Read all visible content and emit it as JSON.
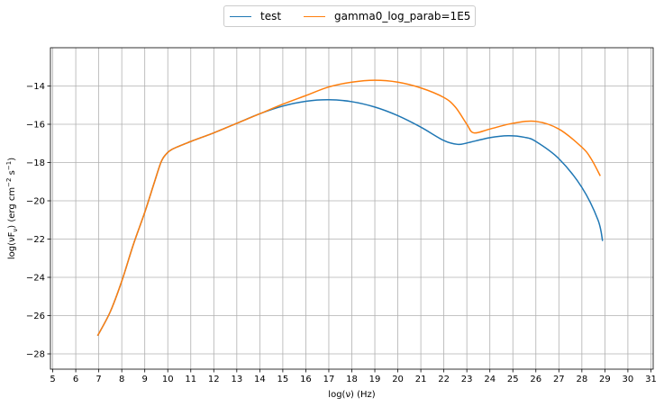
{
  "chart_data": {
    "type": "line",
    "xlabel": "log(ν)  (Hz)",
    "ylabel": "log(νF",
    "ylabel_sub": "ν",
    "ylabel_unit": "(erg cm",
    "ylabel_exp1": "−2",
    "ylabel_s": "s",
    "ylabel_exp2": "−1",
    "xlim": [
      4.9,
      31.1
    ],
    "ylim": [
      -28.8,
      -12.0
    ],
    "xticks": [
      5,
      6,
      7,
      8,
      9,
      10,
      11,
      12,
      13,
      14,
      15,
      16,
      17,
      18,
      19,
      20,
      21,
      22,
      23,
      24,
      25,
      26,
      27,
      28,
      29,
      30,
      31
    ],
    "yticks": [
      -28,
      -26,
      -24,
      -22,
      -20,
      -18,
      -16,
      -14
    ],
    "grid": true,
    "legend_position": "top-center",
    "series": [
      {
        "name": "test",
        "color": "#1f77b4",
        "points": [
          [
            6.95,
            -27.05
          ],
          [
            7.5,
            -25.8
          ],
          [
            8.0,
            -24.2
          ],
          [
            8.5,
            -22.3
          ],
          [
            9.0,
            -20.6
          ],
          [
            9.4,
            -19.1
          ],
          [
            9.7,
            -18.0
          ],
          [
            9.9,
            -17.6
          ],
          [
            10.2,
            -17.3
          ],
          [
            11,
            -16.9
          ],
          [
            12,
            -16.45
          ],
          [
            13,
            -15.95
          ],
          [
            14,
            -15.45
          ],
          [
            15,
            -15.05
          ],
          [
            16,
            -14.8
          ],
          [
            17,
            -14.72
          ],
          [
            18,
            -14.82
          ],
          [
            19,
            -15.1
          ],
          [
            20,
            -15.55
          ],
          [
            21,
            -16.15
          ],
          [
            22,
            -16.85
          ],
          [
            22.6,
            -17.05
          ],
          [
            23,
            -16.98
          ],
          [
            24,
            -16.7
          ],
          [
            24.8,
            -16.6
          ],
          [
            25.5,
            -16.68
          ],
          [
            26,
            -16.9
          ],
          [
            27,
            -17.8
          ],
          [
            28,
            -19.3
          ],
          [
            28.7,
            -21.0
          ],
          [
            28.9,
            -22.1
          ]
        ]
      },
      {
        "name": "gamma0_log_parab=1E5",
        "color": "#ff7f0e",
        "points": [
          [
            6.95,
            -27.05
          ],
          [
            7.5,
            -25.8
          ],
          [
            8.0,
            -24.2
          ],
          [
            8.5,
            -22.3
          ],
          [
            9.0,
            -20.6
          ],
          [
            9.4,
            -19.1
          ],
          [
            9.7,
            -18.0
          ],
          [
            9.9,
            -17.6
          ],
          [
            10.2,
            -17.3
          ],
          [
            11,
            -16.9
          ],
          [
            12,
            -16.45
          ],
          [
            13,
            -15.95
          ],
          [
            14,
            -15.45
          ],
          [
            15,
            -14.95
          ],
          [
            16,
            -14.5
          ],
          [
            17,
            -14.05
          ],
          [
            18,
            -13.8
          ],
          [
            19,
            -13.7
          ],
          [
            20,
            -13.8
          ],
          [
            21,
            -14.1
          ],
          [
            22,
            -14.6
          ],
          [
            22.5,
            -15.1
          ],
          [
            23,
            -16.0
          ],
          [
            23.3,
            -16.45
          ],
          [
            24,
            -16.25
          ],
          [
            25,
            -15.95
          ],
          [
            26,
            -15.85
          ],
          [
            27,
            -16.25
          ],
          [
            28,
            -17.2
          ],
          [
            28.4,
            -17.8
          ],
          [
            28.8,
            -18.7
          ]
        ]
      }
    ]
  }
}
